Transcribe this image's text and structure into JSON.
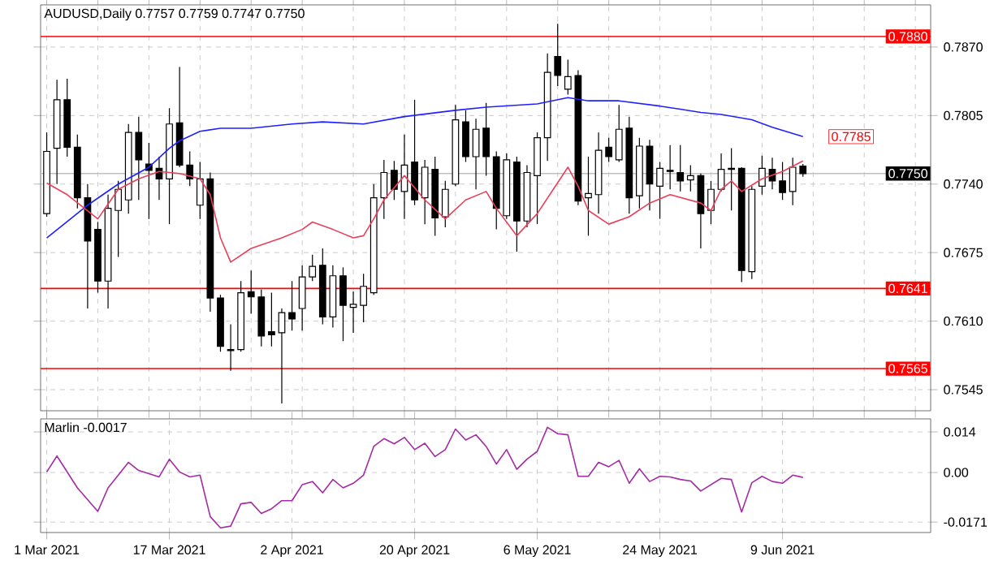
{
  "chart_data": [
    {
      "type": "candlestick",
      "title": "AUDUSD,Daily 0.7757 0.7759 0.7747 0.7750",
      "categories": [
        null,
        null,
        null,
        null,
        null,
        null,
        null,
        null,
        null,
        null,
        null,
        null,
        null,
        null,
        null,
        null,
        null,
        null,
        null,
        null,
        null,
        null,
        null,
        null,
        null,
        null,
        null,
        null,
        null,
        null,
        null,
        null,
        null,
        null,
        null,
        null,
        null,
        null,
        null,
        null,
        null,
        null,
        null,
        null,
        null,
        null,
        null,
        null,
        null,
        null,
        null,
        null,
        null,
        null,
        null,
        null,
        null,
        null,
        null,
        null,
        null,
        null,
        null,
        null,
        null,
        null,
        null,
        null,
        null,
        null,
        null,
        null,
        null,
        null,
        null
      ],
      "ohlc": [
        [
          0.7712,
          0.7789,
          0.7709,
          0.7771
        ],
        [
          0.7774,
          0.7839,
          0.774,
          0.782
        ],
        [
          0.782,
          0.784,
          0.7766,
          0.7775
        ],
        [
          0.7775,
          0.7787,
          0.7717,
          0.7727
        ],
        [
          0.7727,
          0.774,
          0.7622,
          0.7686
        ],
        [
          0.7697,
          0.7704,
          0.7637,
          0.7648
        ],
        [
          0.7648,
          0.773,
          0.7622,
          0.7717
        ],
        [
          0.7715,
          0.7743,
          0.7671,
          0.7735
        ],
        [
          0.7725,
          0.7797,
          0.7712,
          0.7789
        ],
        [
          0.7789,
          0.7804,
          0.7725,
          0.7763
        ],
        [
          0.7759,
          0.7779,
          0.7707,
          0.7753
        ],
        [
          0.7755,
          0.7766,
          0.7725,
          0.7745
        ],
        [
          0.7745,
          0.7812,
          0.7702,
          0.7797
        ],
        [
          0.7798,
          0.7851,
          0.7756,
          0.7758
        ],
        [
          0.7758,
          0.7771,
          0.7738,
          0.7745
        ],
        [
          0.772,
          0.7761,
          0.7707,
          0.7745
        ],
        [
          0.7745,
          0.7751,
          0.7619,
          0.7632
        ],
        [
          0.7632,
          0.7635,
          0.7581,
          0.7586
        ],
        [
          0.7583,
          0.7607,
          0.7563,
          0.7582
        ],
        [
          0.7583,
          0.7648,
          0.7581,
          0.7637
        ],
        [
          0.7638,
          0.7658,
          0.7617,
          0.7633
        ],
        [
          0.7633,
          0.764,
          0.7586,
          0.7596
        ],
        [
          0.76,
          0.7637,
          0.7586,
          0.7597
        ],
        [
          0.7599,
          0.7622,
          0.7532,
          0.7618
        ],
        [
          0.7618,
          0.7648,
          0.7601,
          0.7612
        ],
        [
          0.7622,
          0.7663,
          0.7601,
          0.7652
        ],
        [
          0.7652,
          0.7673,
          0.7648,
          0.7662
        ],
        [
          0.7663,
          0.7679,
          0.7607,
          0.7614
        ],
        [
          0.7614,
          0.7663,
          0.7604,
          0.7653
        ],
        [
          0.7653,
          0.7661,
          0.7591,
          0.7625
        ],
        [
          0.7623,
          0.7638,
          0.7599,
          0.7626
        ],
        [
          0.7625,
          0.7655,
          0.7609,
          0.7643
        ],
        [
          0.7637,
          0.774,
          0.7635,
          0.7727
        ],
        [
          0.7727,
          0.7763,
          0.7707,
          0.7751
        ],
        [
          0.7753,
          0.7762,
          0.7725,
          0.7735
        ],
        [
          0.7733,
          0.7787,
          0.7707,
          0.7758
        ],
        [
          0.7761,
          0.782,
          0.772,
          0.7725
        ],
        [
          0.7727,
          0.7763,
          0.7702,
          0.7756
        ],
        [
          0.7754,
          0.7766,
          0.7691,
          0.7708
        ],
        [
          0.7709,
          0.7743,
          0.7699,
          0.7735
        ],
        [
          0.774,
          0.7815,
          0.7738,
          0.7801
        ],
        [
          0.7799,
          0.781,
          0.7761,
          0.7766
        ],
        [
          0.7766,
          0.7802,
          0.7735,
          0.7792
        ],
        [
          0.7793,
          0.7817,
          0.7748,
          0.7766
        ],
        [
          0.7766,
          0.7771,
          0.7697,
          0.7717
        ],
        [
          0.771,
          0.7769,
          0.7707,
          0.7763
        ],
        [
          0.7761,
          0.7766,
          0.7676,
          0.7705
        ],
        [
          0.7705,
          0.7758,
          0.7699,
          0.7751
        ],
        [
          0.7748,
          0.7789,
          0.7702,
          0.7784
        ],
        [
          0.7784,
          0.7864,
          0.7762,
          0.7846
        ],
        [
          0.7861,
          0.7892,
          0.7833,
          0.7843
        ],
        [
          0.783,
          0.7858,
          0.7825,
          0.7842
        ],
        [
          0.7843,
          0.7848,
          0.772,
          0.7724
        ],
        [
          0.7727,
          0.7766,
          0.7691,
          0.7731
        ],
        [
          0.773,
          0.7789,
          0.7712,
          0.7772
        ],
        [
          0.7775,
          0.7784,
          0.7761,
          0.7766
        ],
        [
          0.7763,
          0.7815,
          0.7761,
          0.7792
        ],
        [
          0.7793,
          0.7804,
          0.7712,
          0.7727
        ],
        [
          0.7729,
          0.7784,
          0.7717,
          0.7776
        ],
        [
          0.7776,
          0.7782,
          0.7715,
          0.774
        ],
        [
          0.7738,
          0.7761,
          0.7707,
          0.7755
        ],
        [
          0.7753,
          0.7777,
          0.7735,
          0.7752
        ],
        [
          0.7751,
          0.7777,
          0.7733,
          0.7743
        ],
        [
          0.7744,
          0.7758,
          0.7733,
          0.7748
        ],
        [
          0.7748,
          0.775,
          0.7679,
          0.7712
        ],
        [
          0.7715,
          0.7743,
          0.7702,
          0.7735
        ],
        [
          0.7735,
          0.7769,
          0.7733,
          0.7754
        ],
        [
          0.7755,
          0.7774,
          0.7715,
          0.7754
        ],
        [
          0.7755,
          0.7756,
          0.7647,
          0.7658
        ],
        [
          0.7657,
          0.7738,
          0.765,
          0.7735
        ],
        [
          0.7738,
          0.7767,
          0.773,
          0.7755
        ],
        [
          0.7754,
          0.7765,
          0.7735,
          0.7743
        ],
        [
          0.7743,
          0.7761,
          0.7725,
          0.7732
        ],
        [
          0.7733,
          0.7765,
          0.772,
          0.7756
        ],
        [
          0.7757,
          0.7759,
          0.7747,
          0.775
        ]
      ],
      "series": [
        {
          "type": "line",
          "color": "#2020ff",
          "values": [
            0.7689,
            null,
            null,
            null,
            0.772,
            null,
            null,
            0.774,
            null,
            null,
            0.7756,
            null,
            0.7774,
            0.7781,
            null,
            0.779,
            null,
            0.7793,
            null,
            null,
            0.7793,
            null,
            null,
            null,
            0.7797,
            null,
            null,
            0.7799,
            null,
            null,
            null,
            0.7797,
            null,
            null,
            null,
            0.7804,
            null,
            null,
            null,
            null,
            0.781,
            null,
            null,
            0.7813,
            null,
            null,
            null,
            null,
            0.7816,
            null,
            null,
            0.7822,
            null,
            0.7819,
            null,
            null,
            0.7819,
            null,
            null,
            null,
            0.7814,
            null,
            0.7811,
            null,
            0.7808,
            null,
            0.7806,
            null,
            null,
            0.7801,
            null,
            0.7794,
            null,
            null,
            0.7785
          ]
        },
        {
          "type": "line",
          "color": "#e8405a",
          "values": [
            0.7741,
            null,
            0.773,
            null,
            null,
            0.7707,
            null,
            0.7735,
            null,
            0.7745,
            null,
            0.7752,
            null,
            0.775,
            null,
            0.7745,
            0.773,
            0.7689,
            0.7666,
            null,
            0.7679,
            null,
            null,
            0.7689,
            null,
            0.7697,
            0.7704,
            null,
            0.7697,
            null,
            0.7689,
            0.7691,
            0.7707,
            0.7725,
            null,
            0.7748,
            null,
            0.7725,
            null,
            0.7707,
            null,
            0.7725,
            null,
            0.7733,
            0.7717,
            null,
            0.7691,
            null,
            0.7712,
            null,
            null,
            0.7756,
            0.7738,
            0.7715,
            null,
            0.7702,
            null,
            0.7709,
            null,
            0.7722,
            null,
            0.773,
            null,
            null,
            0.7722,
            0.7715,
            0.7735,
            0.7743,
            0.7733,
            null,
            0.7745,
            null,
            0.7752,
            null,
            0.7762
          ]
        }
      ],
      "ylim": [
        0.7525,
        0.791
      ],
      "yticks": [
        {
          "value": 0.787,
          "label": "0.7870"
        },
        {
          "value": 0.7805,
          "label": "0.7805"
        },
        {
          "value": 0.774,
          "label": "0.7740"
        },
        {
          "value": 0.7675,
          "label": "0.7675"
        },
        {
          "value": 0.761,
          "label": "0.7610"
        },
        {
          "value": 0.7545,
          "label": "0.7545"
        }
      ],
      "ref_lines": [
        {
          "axis": "y",
          "value": 0.788,
          "label": "0.7880",
          "color": "#ff0000"
        },
        {
          "axis": "y",
          "value": 0.775,
          "label": "0.7750",
          "color": "#c0c0c0"
        },
        {
          "axis": "y",
          "value": 0.7641,
          "label": "0.7641",
          "color": "#ff0000"
        },
        {
          "axis": "y",
          "value": 0.7565,
          "label": "0.7565",
          "color": "#ff0000"
        }
      ],
      "annotations": [
        "0.7785"
      ],
      "grid": true,
      "tick_labels": "y"
    },
    {
      "type": "line",
      "title": "Marlin -0.0017",
      "color": "#a52aa5",
      "categories": [
        "1 Mar 2021",
        null,
        null,
        null,
        null,
        null,
        null,
        null,
        null,
        null,
        null,
        null,
        "17 Mar 2021",
        null,
        null,
        null,
        null,
        null,
        null,
        null,
        null,
        null,
        null,
        null,
        "2 Apr 2021",
        null,
        null,
        null,
        null,
        null,
        null,
        null,
        null,
        null,
        null,
        null,
        "20 Apr 2021",
        null,
        null,
        null,
        null,
        null,
        null,
        null,
        null,
        null,
        null,
        null,
        "6 May 2021",
        null,
        null,
        null,
        null,
        null,
        null,
        null,
        null,
        null,
        null,
        null,
        "24 May 2021",
        null,
        null,
        null,
        null,
        null,
        null,
        null,
        null,
        null,
        null,
        null,
        "9 Jun 2021",
        null,
        null
      ],
      "values": [
        0.0002,
        0.0057,
        null,
        -0.0053,
        null,
        -0.0134,
        -0.0053,
        null,
        0.0035,
        0.0007,
        null,
        -0.0015,
        0.0046,
        0.0002,
        -0.0015,
        -0.0009,
        -0.0152,
        -0.0191,
        -0.0185,
        -0.0108,
        -0.0103,
        -0.0141,
        -0.0125,
        -0.0097,
        -0.0097,
        -0.0042,
        -0.0031,
        -0.007,
        -0.0024,
        -0.0053,
        -0.0037,
        -0.0009,
        0.009,
        0.0117,
        0.0099,
        0.0121,
        0.0079,
        0.0101,
        0.0055,
        0.0079,
        0.015,
        0.0112,
        0.013,
        0.009,
        0.0029,
        0.0079,
        0.0011,
        0.0046,
        0.0073,
        0.0156,
        0.0134,
        0.013,
        -0.0013,
        -0.0013,
        0.0035,
        0.002,
        0.0042,
        -0.0037,
        0.0013,
        -0.0031,
        -0.0013,
        -0.0015,
        -0.0024,
        -0.0029,
        -0.0064,
        -0.0042,
        -0.002,
        -0.0024,
        -0.0136,
        -0.0035,
        -0.0013,
        -0.0031,
        -0.0037,
        -0.0009,
        -0.0017
      ],
      "ylim": [
        -0.0207,
        0.0185
      ],
      "yticks": [
        0.014,
        {
          "value": 0,
          "label": "0.00"
        },
        -0.0171
      ],
      "grid": true
    }
  ]
}
